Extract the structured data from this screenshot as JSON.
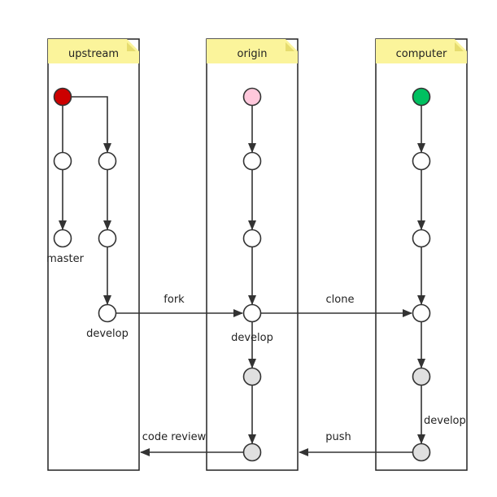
{
  "colors": {
    "start_upstream": "#cc0000",
    "start_origin": "#ffc8dc",
    "start_computer": "#00c060",
    "commit": "#ffffff",
    "new_commit": "#e0e0e0"
  },
  "lanes": {
    "upstream": {
      "title": "upstream"
    },
    "origin": {
      "title": "origin"
    },
    "computer": {
      "title": "computer"
    }
  },
  "branch_labels": {
    "upstream_master": "master",
    "upstream_develop": "develop",
    "origin_develop": "develop",
    "computer_develop": "develop"
  },
  "edge_labels": {
    "fork": "fork",
    "clone": "clone",
    "push": "push",
    "code_review": "code review"
  }
}
